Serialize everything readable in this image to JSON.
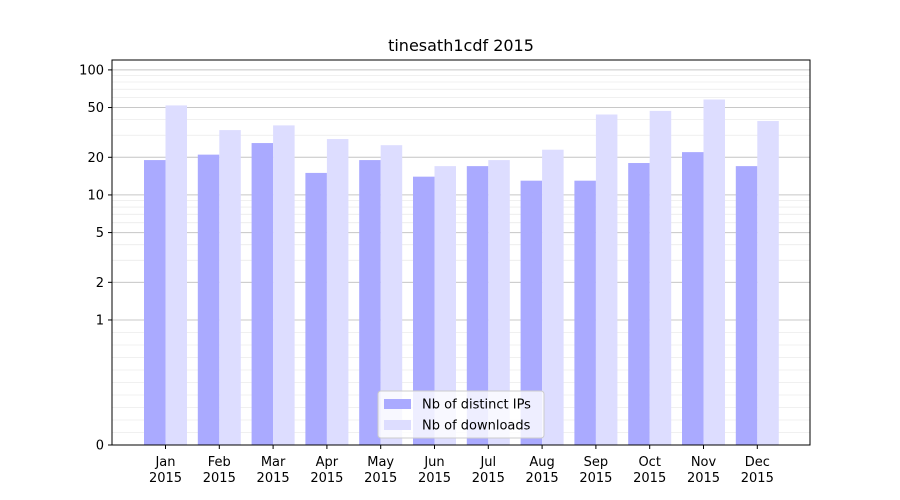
{
  "chart_data": {
    "type": "bar",
    "title": "tinesath1cdf 2015",
    "xlabel": "",
    "ylabel": "",
    "yscale": "symlog",
    "ylim": [
      0,
      120
    ],
    "yticks": [
      0,
      1,
      2,
      5,
      10,
      20,
      50,
      100
    ],
    "categories": [
      "Jan\n2015",
      "Feb\n2015",
      "Mar\n2015",
      "Apr\n2015",
      "May\n2015",
      "Jun\n2015",
      "Jul\n2015",
      "Aug\n2015",
      "Sep\n2015",
      "Oct\n2015",
      "Nov\n2015",
      "Dec\n2015"
    ],
    "series": [
      {
        "name": "Nb of distinct IPs",
        "color": "#aaaaff",
        "values": [
          19,
          21,
          26,
          15,
          19,
          14,
          17,
          13,
          13,
          18,
          22,
          17
        ]
      },
      {
        "name": "Nb of downloads",
        "color": "#ddddff",
        "values": [
          52,
          33,
          36,
          28,
          25,
          17,
          19,
          23,
          44,
          47,
          58,
          39
        ]
      }
    ],
    "grid": true,
    "legend_position": "lower center"
  }
}
